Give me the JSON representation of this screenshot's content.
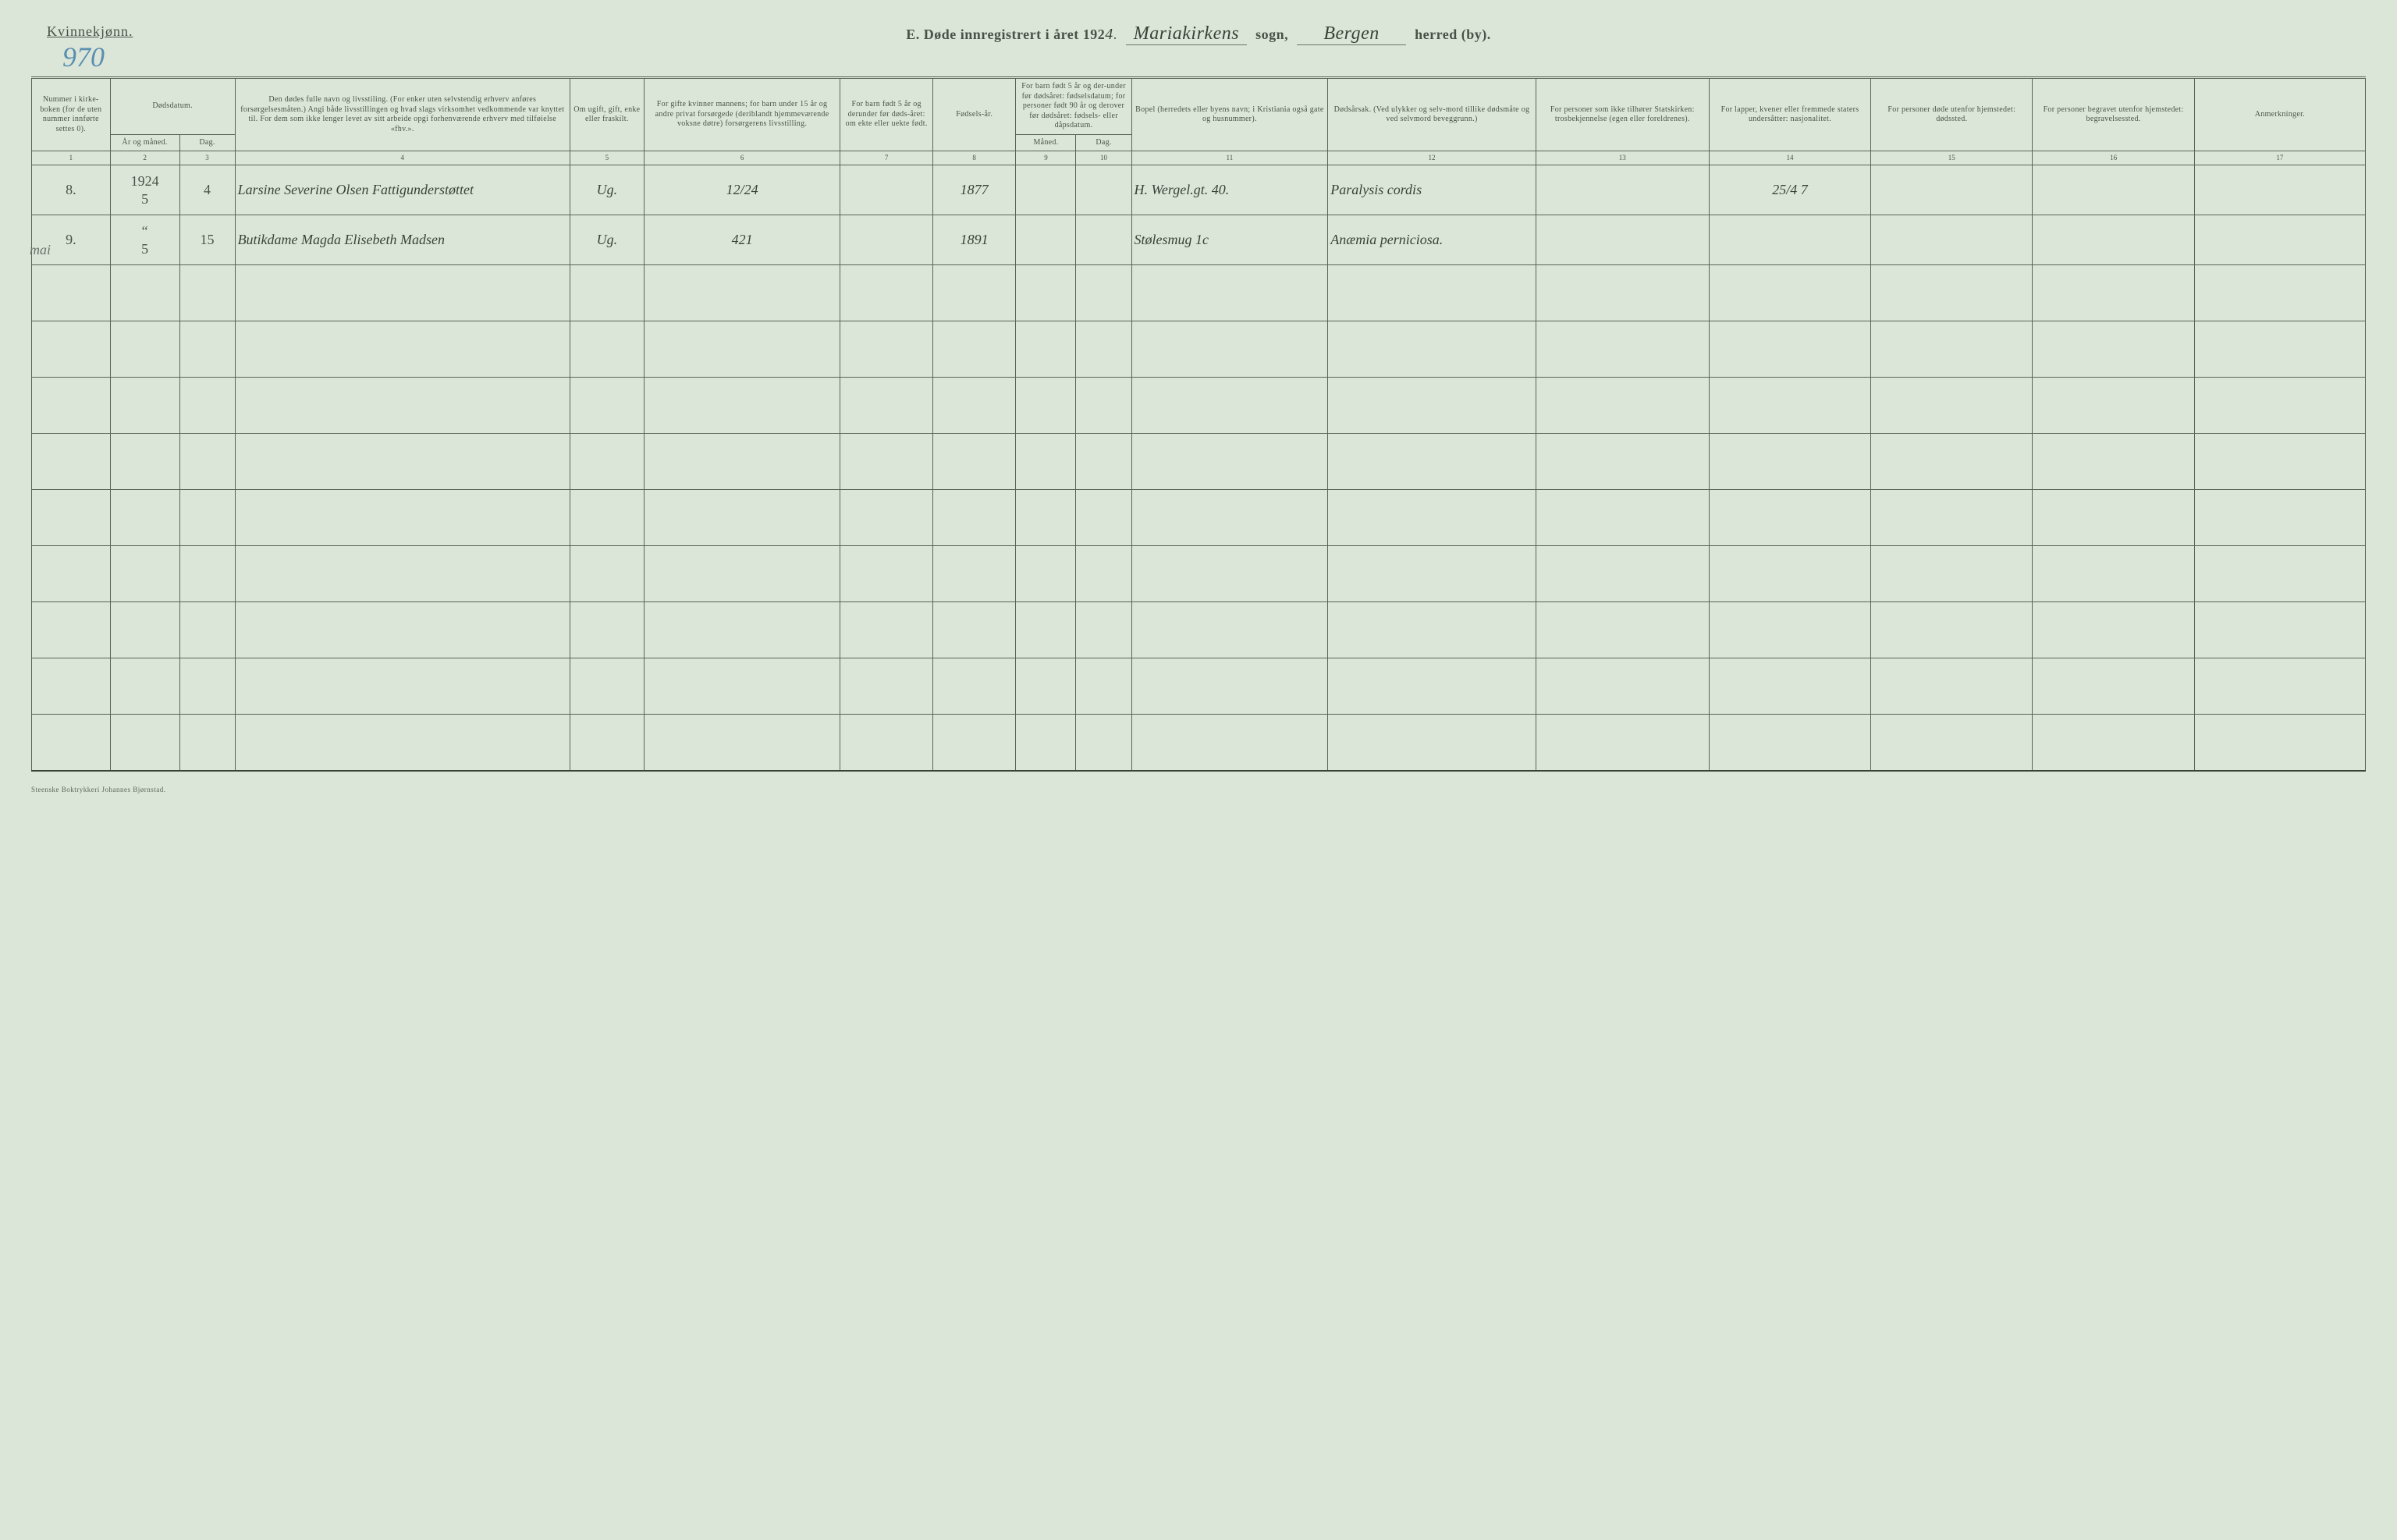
{
  "header": {
    "gender_label": "Kvinnekjønn.",
    "page_number": "970",
    "section_letter": "E.",
    "title_prefix": "Døde innregistrert i året 192",
    "year_suffix": "4",
    "sogn_value": "Mariakirkens",
    "sogn_label": "sogn,",
    "herred_value": "Bergen",
    "herred_label": "herred (by)."
  },
  "margin_note": "mai",
  "columns": {
    "c1": "Nummer i kirke-boken (for de uten nummer innførte settes 0).",
    "c2_3_top": "Dødsdatum.",
    "c2": "År og måned.",
    "c3": "Dag.",
    "c4": "Den dødes fulle navn og livsstiling. (For enker uten selvstendig erhverv anføres forsørgelsesmåten.) Angi både livsstillingen og hvad slags virksomhet vedkommende var knyttet til. For dem som ikke lenger levet av sitt arbeide opgi forhenværende erhverv med tilføielse «fhv.».",
    "c5": "Om ugift, gift, enke eller fraskilt.",
    "c6": "For gifte kvinner mannens; for barn under 15 år og andre privat forsørgede (deriblandt hjemmeværende voksne døtre) forsørgerens livsstilling.",
    "c7": "For barn født 5 år og derunder før døds-året: om ekte eller uekte født.",
    "c8": "Fødsels-år.",
    "c9_10_top": "For barn født 5 år og der-under før dødsåret: fødselsdatum; for personer født 90 år og derover før dødsåret: fødsels- eller dåpsdatum.",
    "c9": "Måned.",
    "c10": "Dag.",
    "c11": "Bopel (herredets eller byens navn; i Kristiania også gate og husnummer).",
    "c12": "Dødsårsak. (Ved ulykker og selv-mord tillike dødsmåte og ved selvmord beveggrunn.)",
    "c13": "For personer som ikke tilhører Statskirken: trosbekjennelse (egen eller foreldrenes).",
    "c14": "For lapper, kvener eller fremmede staters undersåtter: nasjonalitet.",
    "c15": "For personer døde utenfor hjemstedet: dødssted.",
    "c16": "For personer begravet utenfor hjemstedet: begravelsessted.",
    "c17": "Anmerkninger."
  },
  "colnums": [
    "1",
    "2",
    "3",
    "4",
    "5",
    "6",
    "7",
    "8",
    "9",
    "10",
    "11",
    "12",
    "13",
    "14",
    "15",
    "16",
    "17"
  ],
  "rows": [
    {
      "num": "8.",
      "year_top": "1924",
      "year": "5",
      "day": "4",
      "name": "Larsine Severine Olsen Fattigunderstøttet",
      "status": "Ug.",
      "col6": "12/24",
      "col7": "",
      "birth": "1877",
      "c9": "",
      "c10": "",
      "bopel": "H. Wergel.gt. 40.",
      "cause": "Paralysis cordis",
      "c13": "",
      "c14": "25/4 7",
      "c15": "",
      "c16": "",
      "c17": ""
    },
    {
      "num": "9.",
      "year_top": "“",
      "year": "5",
      "day": "15",
      "name": "Butikdame Magda Elisebeth Madsen",
      "status": "Ug.",
      "col6": "421",
      "col7": "",
      "birth": "1891",
      "c9": "",
      "c10": "",
      "bopel": "Stølesmug 1c",
      "cause": "Anæmia perniciosa.",
      "c13": "",
      "c14": "",
      "c15": "",
      "c16": "",
      "c17": ""
    }
  ],
  "footer": "Steenske Boktrykkeri Johannes Bjørnstad.",
  "style": {
    "background_color": "#dce6d8",
    "line_color": "#5a6258",
    "text_color": "#4a5248",
    "handwriting_color": "#3a4238",
    "pagenum_color": "#5a8fb0",
    "header_fontsize": 10,
    "hw_fontsize": 20,
    "title_fontsize": 18
  },
  "layout": {
    "col_widths_pct": [
      3.4,
      3.0,
      2.4,
      14.5,
      3.2,
      8.5,
      4.0,
      3.6,
      2.6,
      2.4,
      8.5,
      9.0,
      7.5,
      7.0,
      7.0,
      7.0,
      7.4
    ],
    "empty_rows": 9
  }
}
